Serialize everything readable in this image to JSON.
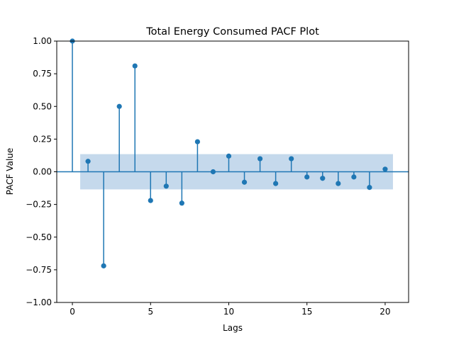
{
  "chart_data": {
    "type": "stem",
    "title": "Total Energy Consumed PACF Plot",
    "xlabel": "Lags",
    "ylabel": "PACF Value",
    "xlim": [
      -1,
      21.5
    ],
    "ylim": [
      -1.0,
      1.0
    ],
    "x_ticks": [
      0,
      5,
      10,
      15,
      20
    ],
    "y_ticks": [
      -1.0,
      -0.75,
      -0.5,
      -0.25,
      0.0,
      0.25,
      0.5,
      0.75,
      1.0
    ],
    "y_tick_labels": [
      "−1.00",
      "−0.75",
      "−0.50",
      "−0.25",
      "0.00",
      "0.25",
      "0.50",
      "0.75",
      "1.00"
    ],
    "x": [
      0,
      1,
      2,
      3,
      4,
      5,
      6,
      7,
      8,
      9,
      10,
      11,
      12,
      13,
      14,
      15,
      16,
      17,
      18,
      19,
      20
    ],
    "values": [
      1.0,
      0.08,
      -0.72,
      0.5,
      0.81,
      -0.22,
      -0.11,
      -0.24,
      0.23,
      0.0,
      0.12,
      -0.08,
      0.1,
      -0.09,
      0.1,
      -0.04,
      -0.05,
      -0.09,
      -0.04,
      -0.12,
      0.02
    ],
    "confidence_band": {
      "x_range": [
        0.5,
        20.5
      ],
      "lower": -0.135,
      "upper": 0.135
    },
    "grid": false,
    "colors": {
      "stem": "#1f77b4",
      "band": "#c5d9ec",
      "axes": "#000000"
    }
  }
}
